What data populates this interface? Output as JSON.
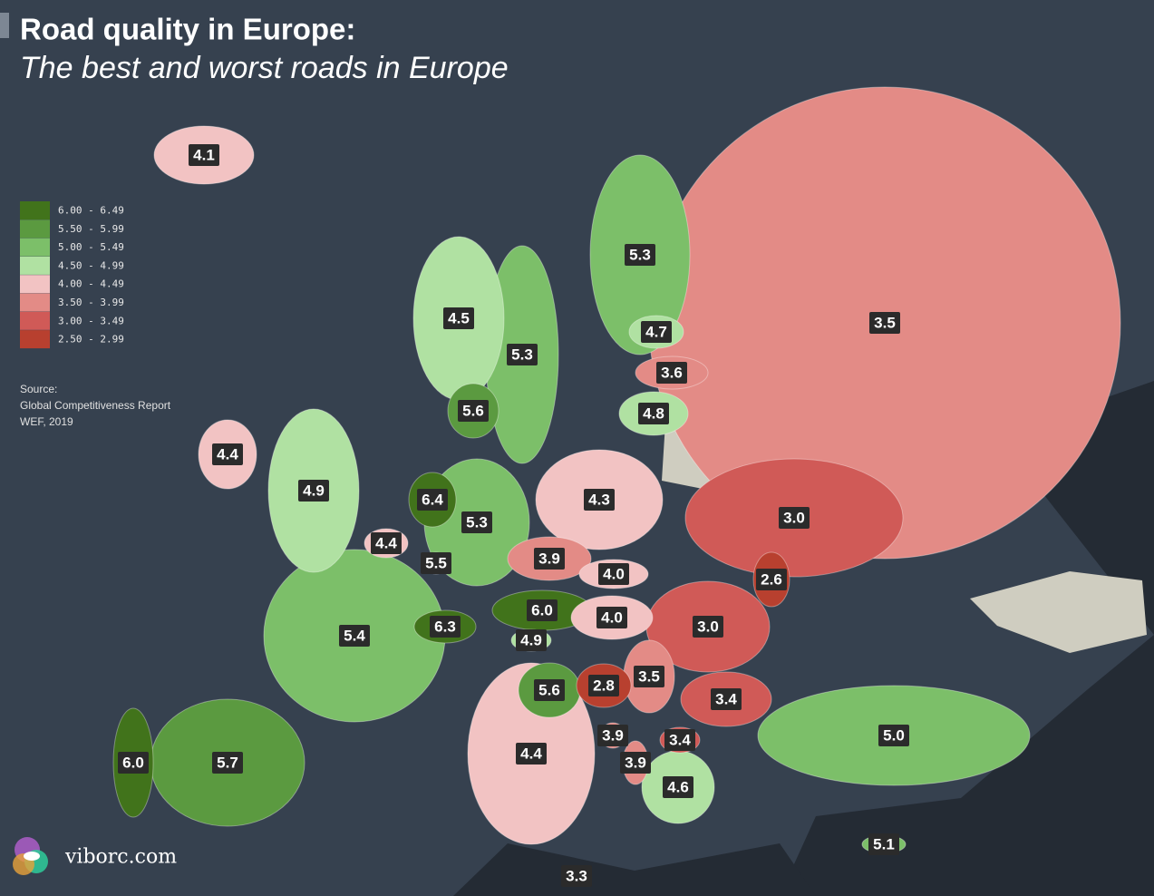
{
  "header": {
    "title": "Road quality in Europe:",
    "subtitle": "The best and worst roads in Europe"
  },
  "legend": [
    {
      "label": "6.00 - 6.49",
      "min": 6.0,
      "max": 6.49,
      "color": "#41731b"
    },
    {
      "label": "5.50 - 5.99",
      "min": 5.5,
      "max": 5.99,
      "color": "#5b9a40"
    },
    {
      "label": "5.00 - 5.49",
      "min": 5.0,
      "max": 5.49,
      "color": "#7cbf69"
    },
    {
      "label": "4.50 - 4.99",
      "min": 4.5,
      "max": 4.99,
      "color": "#b0e1a2"
    },
    {
      "label": "4.00 - 4.49",
      "min": 4.0,
      "max": 4.49,
      "color": "#f2c3c3"
    },
    {
      "label": "3.50 - 3.99",
      "min": 3.5,
      "max": 3.99,
      "color": "#e38b86"
    },
    {
      "label": "3.00 - 3.49",
      "min": 3.0,
      "max": 3.49,
      "color": "#d05a57"
    },
    {
      "label": "2.50 - 2.99",
      "min": 2.5,
      "max": 2.99,
      "color": "#b8402f"
    }
  ],
  "source": [
    "Source:",
    "Global Competitiveness Report",
    "WEF, 2019"
  ],
  "brand": "viborc.com",
  "regions": [
    {
      "value": 4.1,
      "label": "4.1"
    },
    {
      "value": 4.5,
      "label": "4.5"
    },
    {
      "value": 5.3,
      "label": "5.3"
    },
    {
      "value": 5.3,
      "label": "5.3"
    },
    {
      "value": 3.5,
      "label": "3.5"
    },
    {
      "value": 4.7,
      "label": "4.7"
    },
    {
      "value": 3.6,
      "label": "3.6"
    },
    {
      "value": 4.8,
      "label": "4.8"
    },
    {
      "value": 5.6,
      "label": "5.6"
    },
    {
      "value": 4.4,
      "label": "4.4"
    },
    {
      "value": 4.9,
      "label": "4.9"
    },
    {
      "value": 6.4,
      "label": "6.4"
    },
    {
      "value": 5.3,
      "label": "5.3"
    },
    {
      "value": 4.3,
      "label": "4.3"
    },
    {
      "value": 3.0,
      "label": "3.0"
    },
    {
      "value": 4.4,
      "label": "4.4"
    },
    {
      "value": 5.5,
      "label": "5.5"
    },
    {
      "value": 3.9,
      "label": "3.9"
    },
    {
      "value": 4.0,
      "label": "4.0"
    },
    {
      "value": 2.6,
      "label": "2.6"
    },
    {
      "value": 6.0,
      "label": "6.0"
    },
    {
      "value": 4.0,
      "label": "4.0"
    },
    {
      "value": 6.3,
      "label": "6.3"
    },
    {
      "value": 5.4,
      "label": "5.4"
    },
    {
      "value": 4.9,
      "label": "4.9"
    },
    {
      "value": 3.0,
      "label": "3.0"
    },
    {
      "value": 3.5,
      "label": "3.5"
    },
    {
      "value": 2.8,
      "label": "2.8"
    },
    {
      "value": 5.6,
      "label": "5.6"
    },
    {
      "value": 3.4,
      "label": "3.4"
    },
    {
      "value": 3.9,
      "label": "3.9"
    },
    {
      "value": 3.4,
      "label": "3.4"
    },
    {
      "value": 3.9,
      "label": "3.9"
    },
    {
      "value": 4.4,
      "label": "4.4"
    },
    {
      "value": 4.6,
      "label": "4.6"
    },
    {
      "value": 5.0,
      "label": "5.0"
    },
    {
      "value": 6.0,
      "label": "6.0"
    },
    {
      "value": 5.7,
      "label": "5.7"
    },
    {
      "value": 5.1,
      "label": "5.1"
    },
    {
      "value": 3.3,
      "label": "3.3"
    }
  ]
}
